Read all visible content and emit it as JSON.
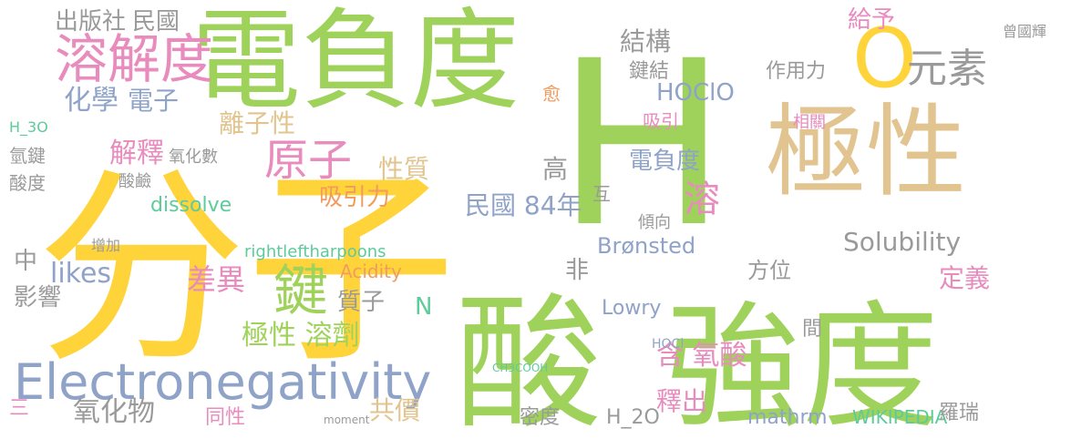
{
  "colors": {
    "green": "#9fd25a",
    "yellow": "#ffd43b",
    "tan": "#e1c48f",
    "blue": "#8fa3c9",
    "pink": "#e88bbd",
    "orange": "#f29b5e",
    "teal": "#5ecb9a",
    "gray": "#9a9a9a",
    "dark": "#7a7a7a"
  },
  "words": [
    {
      "text": "分子",
      "c": "yellow"
    },
    {
      "text": "H",
      "c": "green"
    },
    {
      "text": "酸",
      "c": "green"
    },
    {
      "text": "強度",
      "c": "green"
    },
    {
      "text": "電負度",
      "c": "green"
    },
    {
      "text": "極性",
      "c": "tan"
    },
    {
      "text": "O",
      "c": "yellow"
    },
    {
      "text": "Electronegativity",
      "c": "blue"
    },
    {
      "text": "溶解度",
      "c": "pink"
    },
    {
      "text": "鍵",
      "c": "green"
    },
    {
      "text": "原子",
      "c": "pink"
    },
    {
      "text": "元素",
      "c": "gray"
    },
    {
      "text": "化學",
      "c": "blue"
    },
    {
      "text": "電子",
      "c": "blue"
    },
    {
      "text": "出版社",
      "c": "gray"
    },
    {
      "text": "民國",
      "c": "gray"
    },
    {
      "text": "解釋",
      "c": "pink"
    },
    {
      "text": "離子性",
      "c": "tan"
    },
    {
      "text": "性質",
      "c": "tan"
    },
    {
      "text": "溶",
      "c": "pink"
    },
    {
      "text": "HOClO",
      "c": "blue"
    },
    {
      "text": "結構",
      "c": "gray"
    },
    {
      "text": "給予",
      "c": "pink"
    },
    {
      "text": "鍵結",
      "c": "gray"
    },
    {
      "text": "作用力",
      "c": "gray"
    },
    {
      "text": "電負度",
      "c": "blue"
    },
    {
      "text": "高",
      "c": "gray"
    },
    {
      "text": "吸引力",
      "c": "orange"
    },
    {
      "text": "民國 84年",
      "c": "blue"
    },
    {
      "text": "Solubility",
      "c": "gray"
    },
    {
      "text": "likes",
      "c": "blue"
    },
    {
      "text": "差異",
      "c": "pink"
    },
    {
      "text": "影響",
      "c": "gray"
    },
    {
      "text": "中",
      "c": "gray"
    },
    {
      "text": "極性 溶劑",
      "c": "green"
    },
    {
      "text": "質子",
      "c": "gray"
    },
    {
      "text": "N",
      "c": "teal"
    },
    {
      "text": "含 氧酸",
      "c": "pink"
    },
    {
      "text": "釋出",
      "c": "pink"
    },
    {
      "text": "氧化物",
      "c": "gray"
    },
    {
      "text": "共價",
      "c": "tan"
    },
    {
      "text": "Brønsted",
      "c": "blue"
    },
    {
      "text": "方位",
      "c": "gray"
    },
    {
      "text": "定義",
      "c": "pink"
    },
    {
      "text": "Lowry",
      "c": "blue"
    },
    {
      "text": "mathrm",
      "c": "blue"
    },
    {
      "text": "H_2O",
      "c": "gray"
    },
    {
      "text": "密度",
      "c": "gray"
    },
    {
      "text": "WIKIPEDIA",
      "c": "teal"
    },
    {
      "text": "羅瑞",
      "c": "gray"
    },
    {
      "text": "dissolve",
      "c": "teal"
    },
    {
      "text": "Acidity",
      "c": "orange"
    },
    {
      "text": "rightleftharpoons",
      "c": "teal"
    },
    {
      "text": "同性",
      "c": "pink"
    },
    {
      "text": "氫鍵",
      "c": "gray"
    },
    {
      "text": "酸度",
      "c": "gray"
    },
    {
      "text": "氧化數",
      "c": "gray"
    },
    {
      "text": "酸鹼",
      "c": "gray"
    },
    {
      "text": "傾向",
      "c": "gray"
    },
    {
      "text": "吸引",
      "c": "pink"
    },
    {
      "text": "相關",
      "c": "pink"
    },
    {
      "text": "曾國輝",
      "c": "gray"
    },
    {
      "text": "愈",
      "c": "orange"
    },
    {
      "text": "增加",
      "c": "gray"
    },
    {
      "text": "非",
      "c": "gray"
    },
    {
      "text": "間",
      "c": "gray"
    },
    {
      "text": "三",
      "c": "pink"
    },
    {
      "text": "互",
      "c": "gray"
    },
    {
      "text": "H_3O",
      "c": "teal"
    },
    {
      "text": "HOCl",
      "c": "blue"
    },
    {
      "text": "CH3COOH",
      "c": "teal"
    },
    {
      "text": "mo​ment",
      "c": "gray"
    }
  ]
}
